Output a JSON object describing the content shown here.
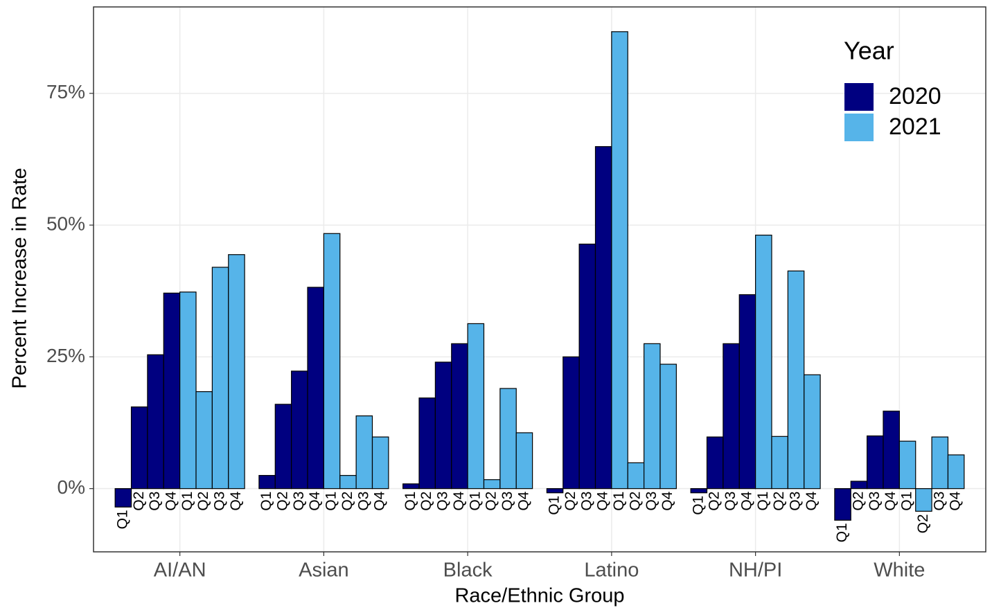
{
  "chart_data": {
    "type": "bar",
    "x_label": "Race/Ethnic Group",
    "y_label": "Percent Increase in Rate",
    "categories": [
      "AI/AN",
      "Asian",
      "Black",
      "Latino",
      "NH/PI",
      "White"
    ],
    "quarters": [
      "Q1",
      "Q2",
      "Q3",
      "Q4"
    ],
    "legend_title": "Year",
    "legend_position": "top-right",
    "grid": true,
    "ylim": [
      -12,
      91.4
    ],
    "yticks": [
      {
        "value": 0,
        "label": "0%"
      },
      {
        "value": 25,
        "label": "25%"
      },
      {
        "value": 50,
        "label": "50%"
      },
      {
        "value": 75,
        "label": "75%"
      }
    ],
    "series": [
      {
        "name": "2020",
        "color": "#000080",
        "values": [
          [
            -3.5,
            15.5,
            25.4,
            37.1
          ],
          [
            2.5,
            16,
            22.3,
            38.2
          ],
          [
            0.9,
            17.2,
            24,
            27.5
          ],
          [
            -0.8,
            25,
            46.4,
            64.9
          ],
          [
            -0.8,
            9.8,
            27.5,
            36.8
          ],
          [
            -6,
            1.4,
            10,
            14.7
          ]
        ]
      },
      {
        "name": "2021",
        "color": "#56B4E9",
        "values": [
          [
            37.3,
            18.4,
            42,
            44.4
          ],
          [
            48.4,
            2.5,
            13.8,
            9.8
          ],
          [
            31.3,
            1.7,
            19,
            10.6
          ],
          [
            86.7,
            4.9,
            27.5,
            23.6
          ],
          [
            48.1,
            9.9,
            41.3,
            21.6
          ],
          [
            9,
            -4.3,
            9.8,
            6.4
          ]
        ]
      }
    ]
  }
}
